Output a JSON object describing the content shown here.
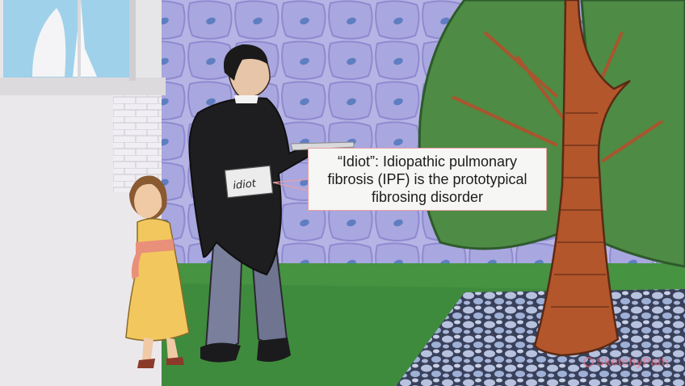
{
  "scene": {
    "description_tags": [
      "stone-wall",
      "lung-shaped-tree",
      "butler",
      "girl",
      "window",
      "cobblestone-path"
    ],
    "colors": {
      "wall": "#b9b7e6",
      "wall_cells": "#8f93d4",
      "grass": "#3e8a3c",
      "foliage": "#4d8a43",
      "trunk": "#b0552a",
      "building": "#e9e6ea",
      "coat": "#1d1d1f",
      "trousers": "#7a7f9c",
      "dress": "#f0c65a",
      "sash": "#e88b72",
      "path": "#b9c3df"
    }
  },
  "callout": {
    "text": "“Idiot”: Idiopathic pulmonary\nfibrosis (IPF) is the prototypical\nfibrosing disorder"
  },
  "label": {
    "text": "idiot"
  },
  "watermark": {
    "text": "SketchyPath"
  }
}
